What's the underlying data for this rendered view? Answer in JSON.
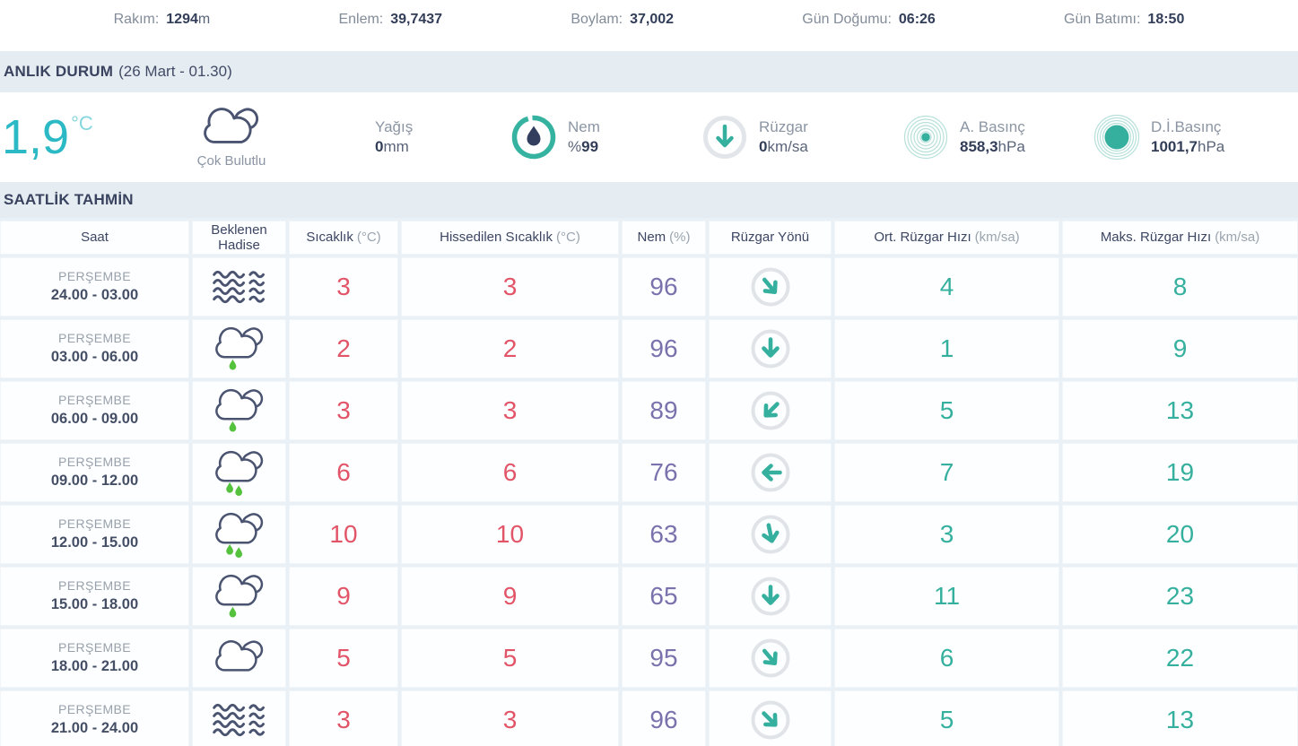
{
  "topbar": {
    "items": [
      {
        "label": "Rakım:",
        "value": "1294",
        "unit": "m"
      },
      {
        "label": "Enlem:",
        "value": "39,7437",
        "unit": ""
      },
      {
        "label": "Boylam:",
        "value": "37,002",
        "unit": ""
      },
      {
        "label": "Gün Doğumu:",
        "value": "06:26",
        "unit": ""
      },
      {
        "label": "Gün Batımı:",
        "value": "18:50",
        "unit": ""
      }
    ]
  },
  "current": {
    "section_title": "ANLIK DURUM",
    "section_date": "(26 Mart - 01.30)",
    "temperature": "1,9",
    "temperature_unit": "°C",
    "condition_icon": "cloudy",
    "condition_label": "Çok Bulutlu",
    "stats": [
      {
        "icon": "none",
        "label": "Yağış",
        "prefix": "",
        "value": "0",
        "unit": "mm"
      },
      {
        "icon": "humidity-icon",
        "label": "Nem",
        "prefix": "%",
        "value": "99",
        "unit": ""
      },
      {
        "icon": "wind-icon",
        "label": "Rüzgar",
        "prefix": "",
        "value": "0",
        "unit": "km/sa"
      },
      {
        "icon": "pressure-actual",
        "label": "A. Basınç",
        "prefix": "",
        "value": "858,3",
        "unit": "hPa"
      },
      {
        "icon": "pressure-sea",
        "label": "D.İ.Basınç",
        "prefix": "",
        "value": "1001,7",
        "unit": "hPa"
      }
    ]
  },
  "forecast": {
    "section_title": "SAATLİK TAHMİN",
    "columns": [
      {
        "label": "Saat",
        "unit": ""
      },
      {
        "label": "Beklenen Hadise",
        "unit": ""
      },
      {
        "label": "Sıcaklık",
        "unit": "(°C)"
      },
      {
        "label": "Hissedilen Sıcaklık",
        "unit": "(°C)"
      },
      {
        "label": "Nem",
        "unit": "(%)"
      },
      {
        "label": "Rüzgar Yönü",
        "unit": ""
      },
      {
        "label": "Ort. Rüzgar Hızı",
        "unit": "(km/sa)"
      },
      {
        "label": "Maks. Rüzgar Hızı",
        "unit": "(km/sa)"
      }
    ],
    "rows": [
      {
        "day": "PERŞEMBE",
        "time": "24.00 - 03.00",
        "icon": "fog",
        "temp": "3",
        "feels": "3",
        "humidity": "96",
        "wind_rotation_deg": -40,
        "avg_wind": "4",
        "max_wind": "8"
      },
      {
        "day": "PERŞEMBE",
        "time": "03.00 - 06.00",
        "icon": "light-rain",
        "temp": "2",
        "feels": "2",
        "humidity": "96",
        "wind_rotation_deg": 0,
        "avg_wind": "1",
        "max_wind": "9"
      },
      {
        "day": "PERŞEMBE",
        "time": "06.00 - 09.00",
        "icon": "light-rain",
        "temp": "3",
        "feels": "3",
        "humidity": "89",
        "wind_rotation_deg": 45,
        "avg_wind": "5",
        "max_wind": "13"
      },
      {
        "day": "PERŞEMBE",
        "time": "09.00 - 12.00",
        "icon": "rain",
        "temp": "6",
        "feels": "6",
        "humidity": "76",
        "wind_rotation_deg": 90,
        "avg_wind": "7",
        "max_wind": "19"
      },
      {
        "day": "PERŞEMBE",
        "time": "12.00 - 15.00",
        "icon": "rain",
        "temp": "10",
        "feels": "10",
        "humidity": "63",
        "wind_rotation_deg": -12,
        "avg_wind": "3",
        "max_wind": "20"
      },
      {
        "day": "PERŞEMBE",
        "time": "15.00 - 18.00",
        "icon": "light-rain",
        "temp": "9",
        "feels": "9",
        "humidity": "65",
        "wind_rotation_deg": 0,
        "avg_wind": "11",
        "max_wind": "23"
      },
      {
        "day": "PERŞEMBE",
        "time": "18.00 - 21.00",
        "icon": "cloudy",
        "temp": "5",
        "feels": "5",
        "humidity": "95",
        "wind_rotation_deg": -40,
        "avg_wind": "6",
        "max_wind": "22"
      },
      {
        "day": "PERŞEMBE",
        "time": "21.00 - 24.00",
        "icon": "fog",
        "temp": "3",
        "feels": "3",
        "humidity": "96",
        "wind_rotation_deg": -45,
        "avg_wind": "5",
        "max_wind": "13"
      }
    ]
  },
  "colors": {
    "accent_teal": "#36b09e",
    "accent_cyan": "#2bb9c5",
    "temperature_red": "#e25568",
    "humidity_purple": "#7a71ad",
    "rain_green": "#55c23d",
    "navy_text": "#39435f",
    "section_bar_bg": "#e6edf2"
  }
}
